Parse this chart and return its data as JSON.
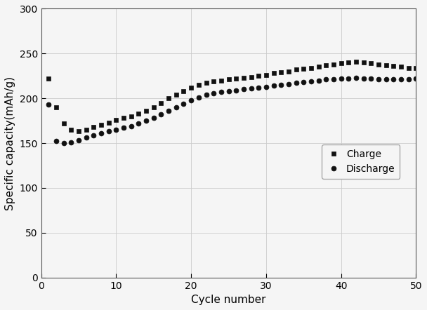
{
  "charge_x": [
    1,
    2,
    3,
    4,
    5,
    6,
    7,
    8,
    9,
    10,
    11,
    12,
    13,
    14,
    15,
    16,
    17,
    18,
    19,
    20,
    21,
    22,
    23,
    24,
    25,
    26,
    27,
    28,
    29,
    30,
    31,
    32,
    33,
    34,
    35,
    36,
    37,
    38,
    39,
    40,
    41,
    42,
    43,
    44,
    45,
    46,
    47,
    48,
    49,
    50
  ],
  "charge_y": [
    222,
    190,
    172,
    165,
    163,
    165,
    168,
    170,
    173,
    176,
    178,
    180,
    183,
    186,
    190,
    195,
    200,
    204,
    208,
    212,
    215,
    217,
    219,
    220,
    221,
    222,
    223,
    224,
    225,
    226,
    228,
    229,
    230,
    232,
    233,
    234,
    235,
    237,
    238,
    239,
    240,
    241,
    240,
    239,
    238,
    237,
    236,
    235,
    234,
    234
  ],
  "discharge_x": [
    1,
    2,
    3,
    4,
    5,
    6,
    7,
    8,
    9,
    10,
    11,
    12,
    13,
    14,
    15,
    16,
    17,
    18,
    19,
    20,
    21,
    22,
    23,
    24,
    25,
    26,
    27,
    28,
    29,
    30,
    31,
    32,
    33,
    34,
    35,
    36,
    37,
    38,
    39,
    40,
    41,
    42,
    43,
    44,
    45,
    46,
    47,
    48,
    49,
    50
  ],
  "discharge_y": [
    193,
    152,
    150,
    151,
    153,
    156,
    159,
    161,
    163,
    165,
    167,
    169,
    172,
    175,
    178,
    182,
    186,
    190,
    194,
    198,
    201,
    204,
    206,
    207,
    208,
    209,
    210,
    211,
    212,
    213,
    214,
    215,
    216,
    217,
    218,
    219,
    220,
    221,
    221,
    222,
    222,
    223,
    222,
    222,
    221,
    221,
    221,
    221,
    221,
    222
  ],
  "xlabel": "Cycle number",
  "ylabel": "Specific capacity(mAh/g)",
  "xlim": [
    0,
    50
  ],
  "ylim": [
    0,
    300
  ],
  "xticks": [
    0,
    10,
    20,
    30,
    40,
    50
  ],
  "yticks": [
    0,
    50,
    100,
    150,
    200,
    250,
    300
  ],
  "charge_label": "Charge",
  "discharge_label": "Discharge",
  "charge_color": "#111111",
  "discharge_color": "#111111",
  "background_color": "#f5f5f5",
  "plot_bg_color": "#f5f5f5",
  "grid_color": "#cccccc",
  "marker_charge": "s",
  "marker_discharge": "o",
  "marker_size_charge": 5,
  "marker_size_discharge": 5,
  "label_fontsize": 11,
  "tick_fontsize": 10,
  "legend_fontsize": 10
}
